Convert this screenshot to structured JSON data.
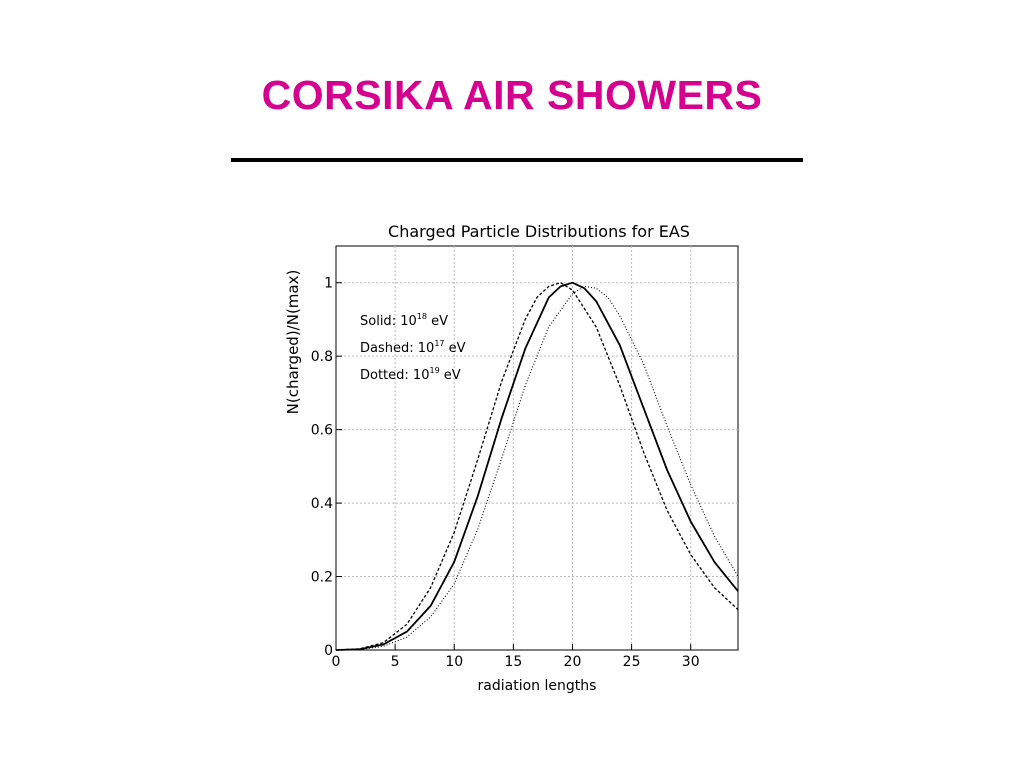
{
  "slide": {
    "title": "CORSIKA AIR SHOWERS",
    "title_color": "#d4008e"
  },
  "chart_data": {
    "type": "line",
    "title": "Charged Particle Distributions for EAS",
    "xlabel": "radiation lengths",
    "ylabel": "N(charged)/N(max)",
    "xlim": [
      0,
      34
    ],
    "ylim": [
      0,
      1.1
    ],
    "grid": true,
    "legend_position": "top-left",
    "x_ticks": [
      "0",
      "5",
      "10",
      "15",
      "20",
      "25",
      "30"
    ],
    "y_ticks": [
      "0",
      "0.2",
      "0.4",
      "0.6",
      "0.8",
      "1"
    ],
    "series": [
      {
        "label_prefix": "Solid",
        "label_base": ": 10",
        "label_exp": "18",
        "label_unit": " eV",
        "style": "solid",
        "x": [
          0,
          2,
          4,
          6,
          8,
          10,
          12,
          14,
          16,
          18,
          19,
          20,
          21,
          22,
          24,
          26,
          28,
          30,
          32,
          34
        ],
        "y": [
          0,
          0.002,
          0.015,
          0.05,
          0.12,
          0.24,
          0.42,
          0.63,
          0.82,
          0.96,
          0.99,
          1.0,
          0.985,
          0.95,
          0.83,
          0.66,
          0.49,
          0.35,
          0.24,
          0.16
        ]
      },
      {
        "label_prefix": "Dashed",
        "label_base": ": 10",
        "label_exp": "17",
        "label_unit": " eV",
        "style": "dashed",
        "x": [
          0,
          2,
          4,
          6,
          8,
          10,
          12,
          14,
          16,
          17,
          18,
          19,
          20,
          22,
          24,
          26,
          28,
          30,
          32,
          34
        ],
        "y": [
          0,
          0.003,
          0.02,
          0.07,
          0.17,
          0.32,
          0.52,
          0.73,
          0.9,
          0.96,
          0.99,
          1.0,
          0.98,
          0.88,
          0.72,
          0.54,
          0.38,
          0.26,
          0.17,
          0.11
        ]
      },
      {
        "label_prefix": "Dotted",
        "label_base": ": 10",
        "label_exp": "19",
        "label_unit": " eV",
        "style": "dotted",
        "x": [
          0,
          2,
          4,
          6,
          8,
          10,
          12,
          14,
          16,
          18,
          20,
          21,
          22,
          23,
          24,
          26,
          28,
          30,
          32,
          34
        ],
        "y": [
          0,
          0.001,
          0.01,
          0.035,
          0.09,
          0.18,
          0.33,
          0.52,
          0.72,
          0.88,
          0.97,
          0.99,
          0.985,
          0.96,
          0.91,
          0.78,
          0.61,
          0.45,
          0.31,
          0.2
        ]
      }
    ]
  }
}
